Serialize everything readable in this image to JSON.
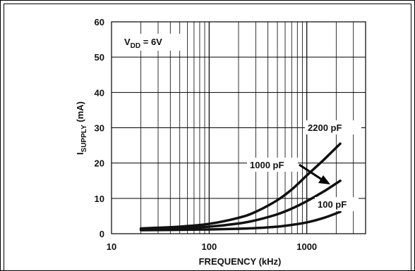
{
  "chart_data": {
    "type": "line",
    "xlabel": "FREQUENCY (kHz)",
    "ylabel_main": "I",
    "ylabel_sub": "SUPPLY",
    "ylabel_unit": " (mA)",
    "x_scale": "log",
    "xlim": [
      10,
      4000
    ],
    "ylim": [
      0,
      60
    ],
    "x_tick_labels": [
      "10",
      "100",
      "1000"
    ],
    "x_ticks": [
      10,
      100,
      1000
    ],
    "y_ticks": [
      0,
      10,
      20,
      30,
      40,
      50,
      60
    ],
    "y_tick_labels": [
      "0",
      "10",
      "20",
      "30",
      "40",
      "50",
      "60"
    ],
    "grid": true,
    "condition": {
      "main": "V",
      "sub": "DD",
      "rest": " = 6V"
    },
    "series": [
      {
        "name": "2200 pF",
        "x": [
          20,
          50,
          100,
          200,
          300,
          500,
          700,
          1000,
          1500,
          2200
        ],
        "y": [
          1.5,
          2.0,
          2.8,
          4.5,
          6.2,
          9.5,
          12.5,
          16.5,
          21.0,
          25.5
        ]
      },
      {
        "name": "1000 pF",
        "x": [
          20,
          50,
          100,
          200,
          300,
          500,
          700,
          1000,
          1500,
          2200
        ],
        "y": [
          1.2,
          1.6,
          2.0,
          2.9,
          3.8,
          5.5,
          7.1,
          9.2,
          12.0,
          15.0
        ]
      },
      {
        "name": "100 pF",
        "x": [
          20,
          50,
          100,
          200,
          300,
          500,
          700,
          1000,
          1500,
          2200
        ],
        "y": [
          1.0,
          1.1,
          1.2,
          1.4,
          1.6,
          2.0,
          2.5,
          3.2,
          4.5,
          6.2
        ]
      }
    ]
  }
}
